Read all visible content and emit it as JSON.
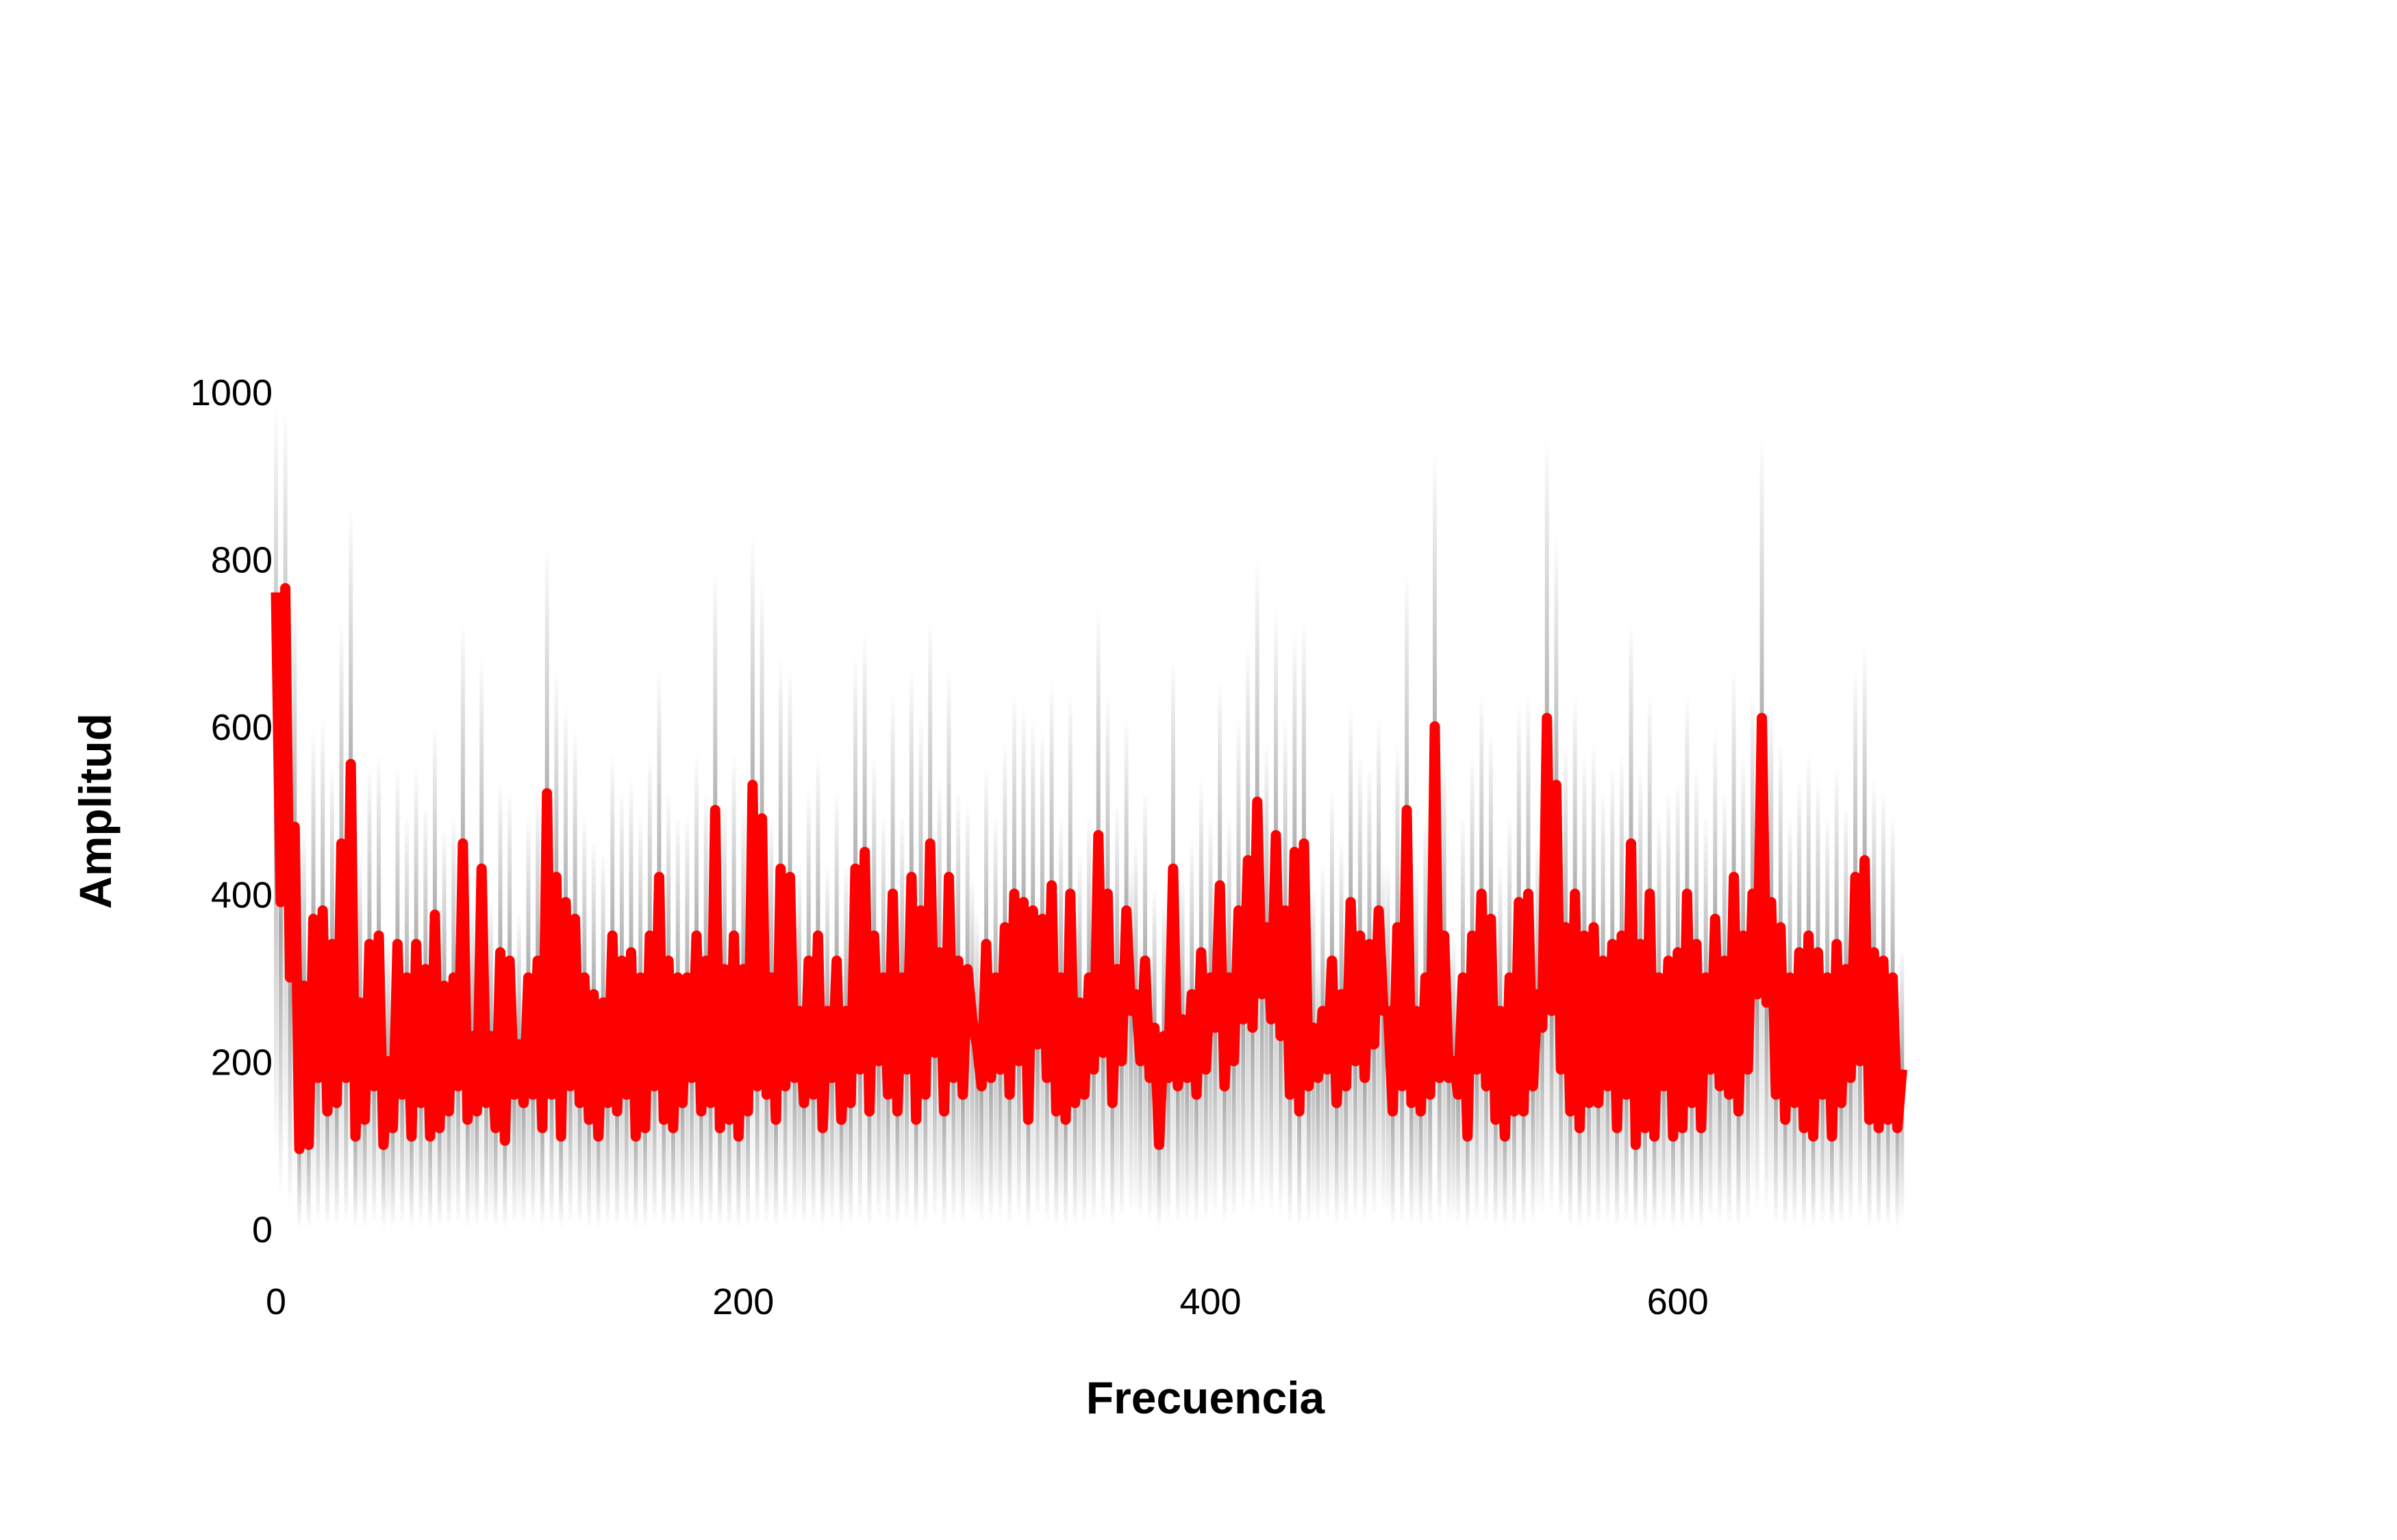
{
  "chart_data": {
    "type": "line",
    "title": "",
    "xlabel": "Frecuencia",
    "ylabel": "Amplitud",
    "xlim": [
      0,
      795
    ],
    "ylim": [
      0,
      1000
    ],
    "x_ticks": [
      0,
      200,
      400,
      600
    ],
    "x_tick_labels": [
      "0",
      "200",
      "400",
      "600"
    ],
    "y_ticks": [
      0,
      200,
      400,
      600,
      800,
      1000
    ],
    "y_tick_labels": [
      "0",
      "200",
      "400",
      "600",
      "800",
      "1000"
    ],
    "grid": false,
    "legend": false,
    "series_color": "#ff0000",
    "band_color": "#000000",
    "series": [
      {
        "x_step": 2,
        "values": [
          760,
          390,
          765,
          300,
          480,
          95,
          290,
          100,
          370,
          180,
          380,
          140,
          340,
          150,
          460,
          180,
          555,
          110,
          270,
          130,
          340,
          170,
          350,
          100,
          200,
          120,
          340,
          160,
          300,
          110,
          340,
          150,
          310,
          110,
          375,
          120,
          290,
          140,
          300,
          170,
          460,
          130,
          230,
          140,
          430,
          150,
          230,
          120,
          330,
          105,
          320,
          160,
          220,
          150,
          300,
          160,
          320,
          120,
          520,
          160,
          420,
          110,
          390,
          170,
          370,
          150,
          300,
          130,
          280,
          110,
          270,
          150,
          350,
          140,
          320,
          160,
          330,
          110,
          300,
          120,
          350,
          170,
          420,
          130,
          320,
          120,
          300,
          150,
          300,
          180,
          350,
          140,
          320,
          150,
          500,
          120,
          310,
          130,
          350,
          110,
          310,
          140,
          530,
          170,
          490,
          160,
          300,
          130,
          430,
          170,
          420,
          180,
          260,
          150,
          320,
          160,
          350,
          120,
          260,
          180,
          320,
          130,
          260,
          150,
          430,
          190,
          450,
          140,
          350,
          200,
          300,
          160,
          400,
          140,
          300,
          190,
          420,
          130,
          380,
          160,
          460,
          210,
          330,
          140,
          420,
          180,
          320,
          160,
          310,
          250,
          220,
          170,
          340,
          180,
          300,
          190,
          360,
          160,
          400,
          200,
          390,
          130,
          380,
          220,
          370,
          180,
          410,
          140,
          300,
          130,
          400,
          150,
          270,
          160,
          300,
          190,
          470,
          210,
          400,
          150,
          310,
          200,
          380,
          260,
          280,
          200,
          320,
          180,
          240,
          100,
          230,
          180,
          430,
          170,
          250,
          180,
          280,
          160,
          330,
          190,
          300,
          240,
          410,
          170,
          300,
          200,
          380,
          250,
          440,
          240,
          510,
          280,
          360,
          250,
          470,
          230,
          380,
          160,
          450,
          140,
          460,
          170,
          240,
          180,
          260,
          190,
          320,
          150,
          280,
          170,
          390,
          200,
          350,
          180,
          340,
          220,
          380,
          260,
          260,
          140,
          360,
          170,
          500,
          150,
          260,
          140,
          300,
          160,
          600,
          180,
          350,
          180,
          200,
          160,
          300,
          110,
          350,
          190,
          400,
          170,
          370,
          130,
          260,
          110,
          300,
          140,
          390,
          140,
          400,
          170,
          280,
          240,
          610,
          260,
          530,
          190,
          360,
          140,
          400,
          120,
          350,
          150,
          360,
          150,
          320,
          170,
          340,
          120,
          350,
          160,
          460,
          100,
          340,
          120,
          400,
          110,
          300,
          170,
          320,
          110,
          330,
          120,
          400,
          150,
          340,
          120,
          300,
          190,
          370,
          170,
          320,
          160,
          420,
          140,
          350,
          190,
          400,
          280,
          610,
          270,
          390,
          160,
          360,
          130,
          300,
          150,
          330,
          120,
          350,
          110,
          330,
          160,
          300,
          110,
          340,
          150,
          310,
          180,
          420,
          200,
          440,
          130,
          330,
          120,
          320,
          130,
          300,
          120,
          190
        ]
      }
    ]
  }
}
